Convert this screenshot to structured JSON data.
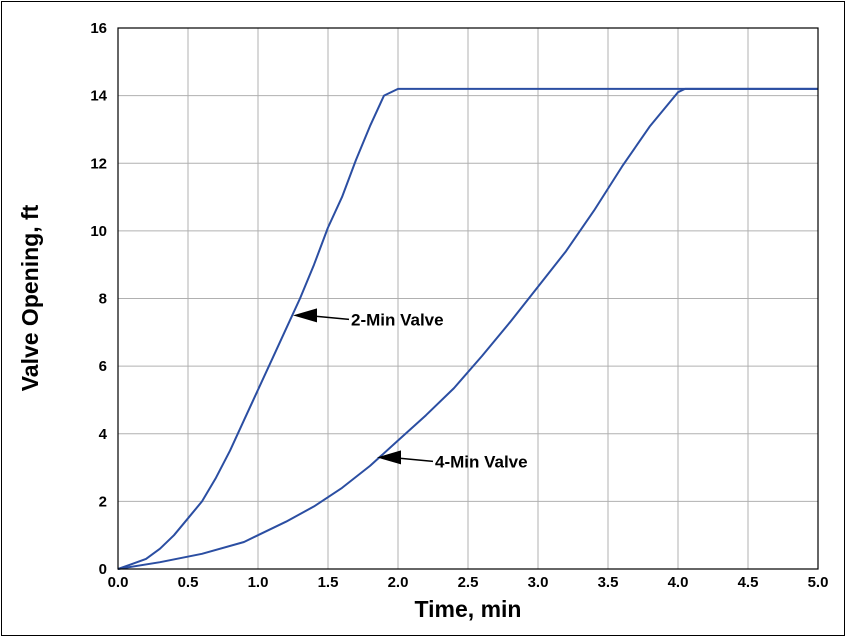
{
  "chart_data": {
    "type": "line",
    "title": "",
    "xlabel": "Time, min",
    "ylabel": "Valve Opening, ft",
    "xlim": [
      0,
      5
    ],
    "ylim": [
      0,
      16
    ],
    "grid": true,
    "x_ticks": [
      "0.0",
      "0.5",
      "1.0",
      "1.5",
      "2.0",
      "2.5",
      "3.0",
      "3.5",
      "4.0",
      "4.5",
      "5.0"
    ],
    "y_ticks": [
      "0",
      "2",
      "4",
      "6",
      "8",
      "10",
      "12",
      "14",
      "16"
    ],
    "line_color": "#2b4ea2",
    "series": [
      {
        "name": "2-Min Valve",
        "x": [
          0,
          0.2,
          0.3,
          0.4,
          0.5,
          0.6,
          0.7,
          0.8,
          0.9,
          1.0,
          1.1,
          1.2,
          1.3,
          1.4,
          1.5,
          1.6,
          1.7,
          1.8,
          1.9,
          2.0,
          5.0
        ],
        "y": [
          0,
          0.3,
          0.6,
          1.0,
          1.5,
          2.0,
          2.7,
          3.5,
          4.4,
          5.3,
          6.2,
          7.1,
          8.0,
          9.0,
          10.1,
          11.0,
          12.1,
          13.1,
          14.0,
          14.2,
          14.2
        ]
      },
      {
        "name": "4-Min Valve",
        "x": [
          0,
          0.3,
          0.6,
          0.9,
          1.0,
          1.2,
          1.4,
          1.6,
          1.8,
          2.0,
          2.2,
          2.4,
          2.6,
          2.8,
          3.0,
          3.2,
          3.4,
          3.6,
          3.8,
          4.0,
          4.05,
          5.0
        ],
        "y": [
          0,
          0.2,
          0.45,
          0.8,
          1.0,
          1.4,
          1.85,
          2.4,
          3.05,
          3.8,
          4.55,
          5.35,
          6.3,
          7.3,
          8.35,
          9.4,
          10.6,
          11.9,
          13.1,
          14.1,
          14.2,
          14.2
        ]
      }
    ],
    "annotations": [
      {
        "text": "2-Min Valve",
        "points_to": [
          1.25,
          7.5
        ]
      },
      {
        "text": "4-Min Valve",
        "points_to": [
          1.85,
          3.3
        ]
      }
    ]
  }
}
